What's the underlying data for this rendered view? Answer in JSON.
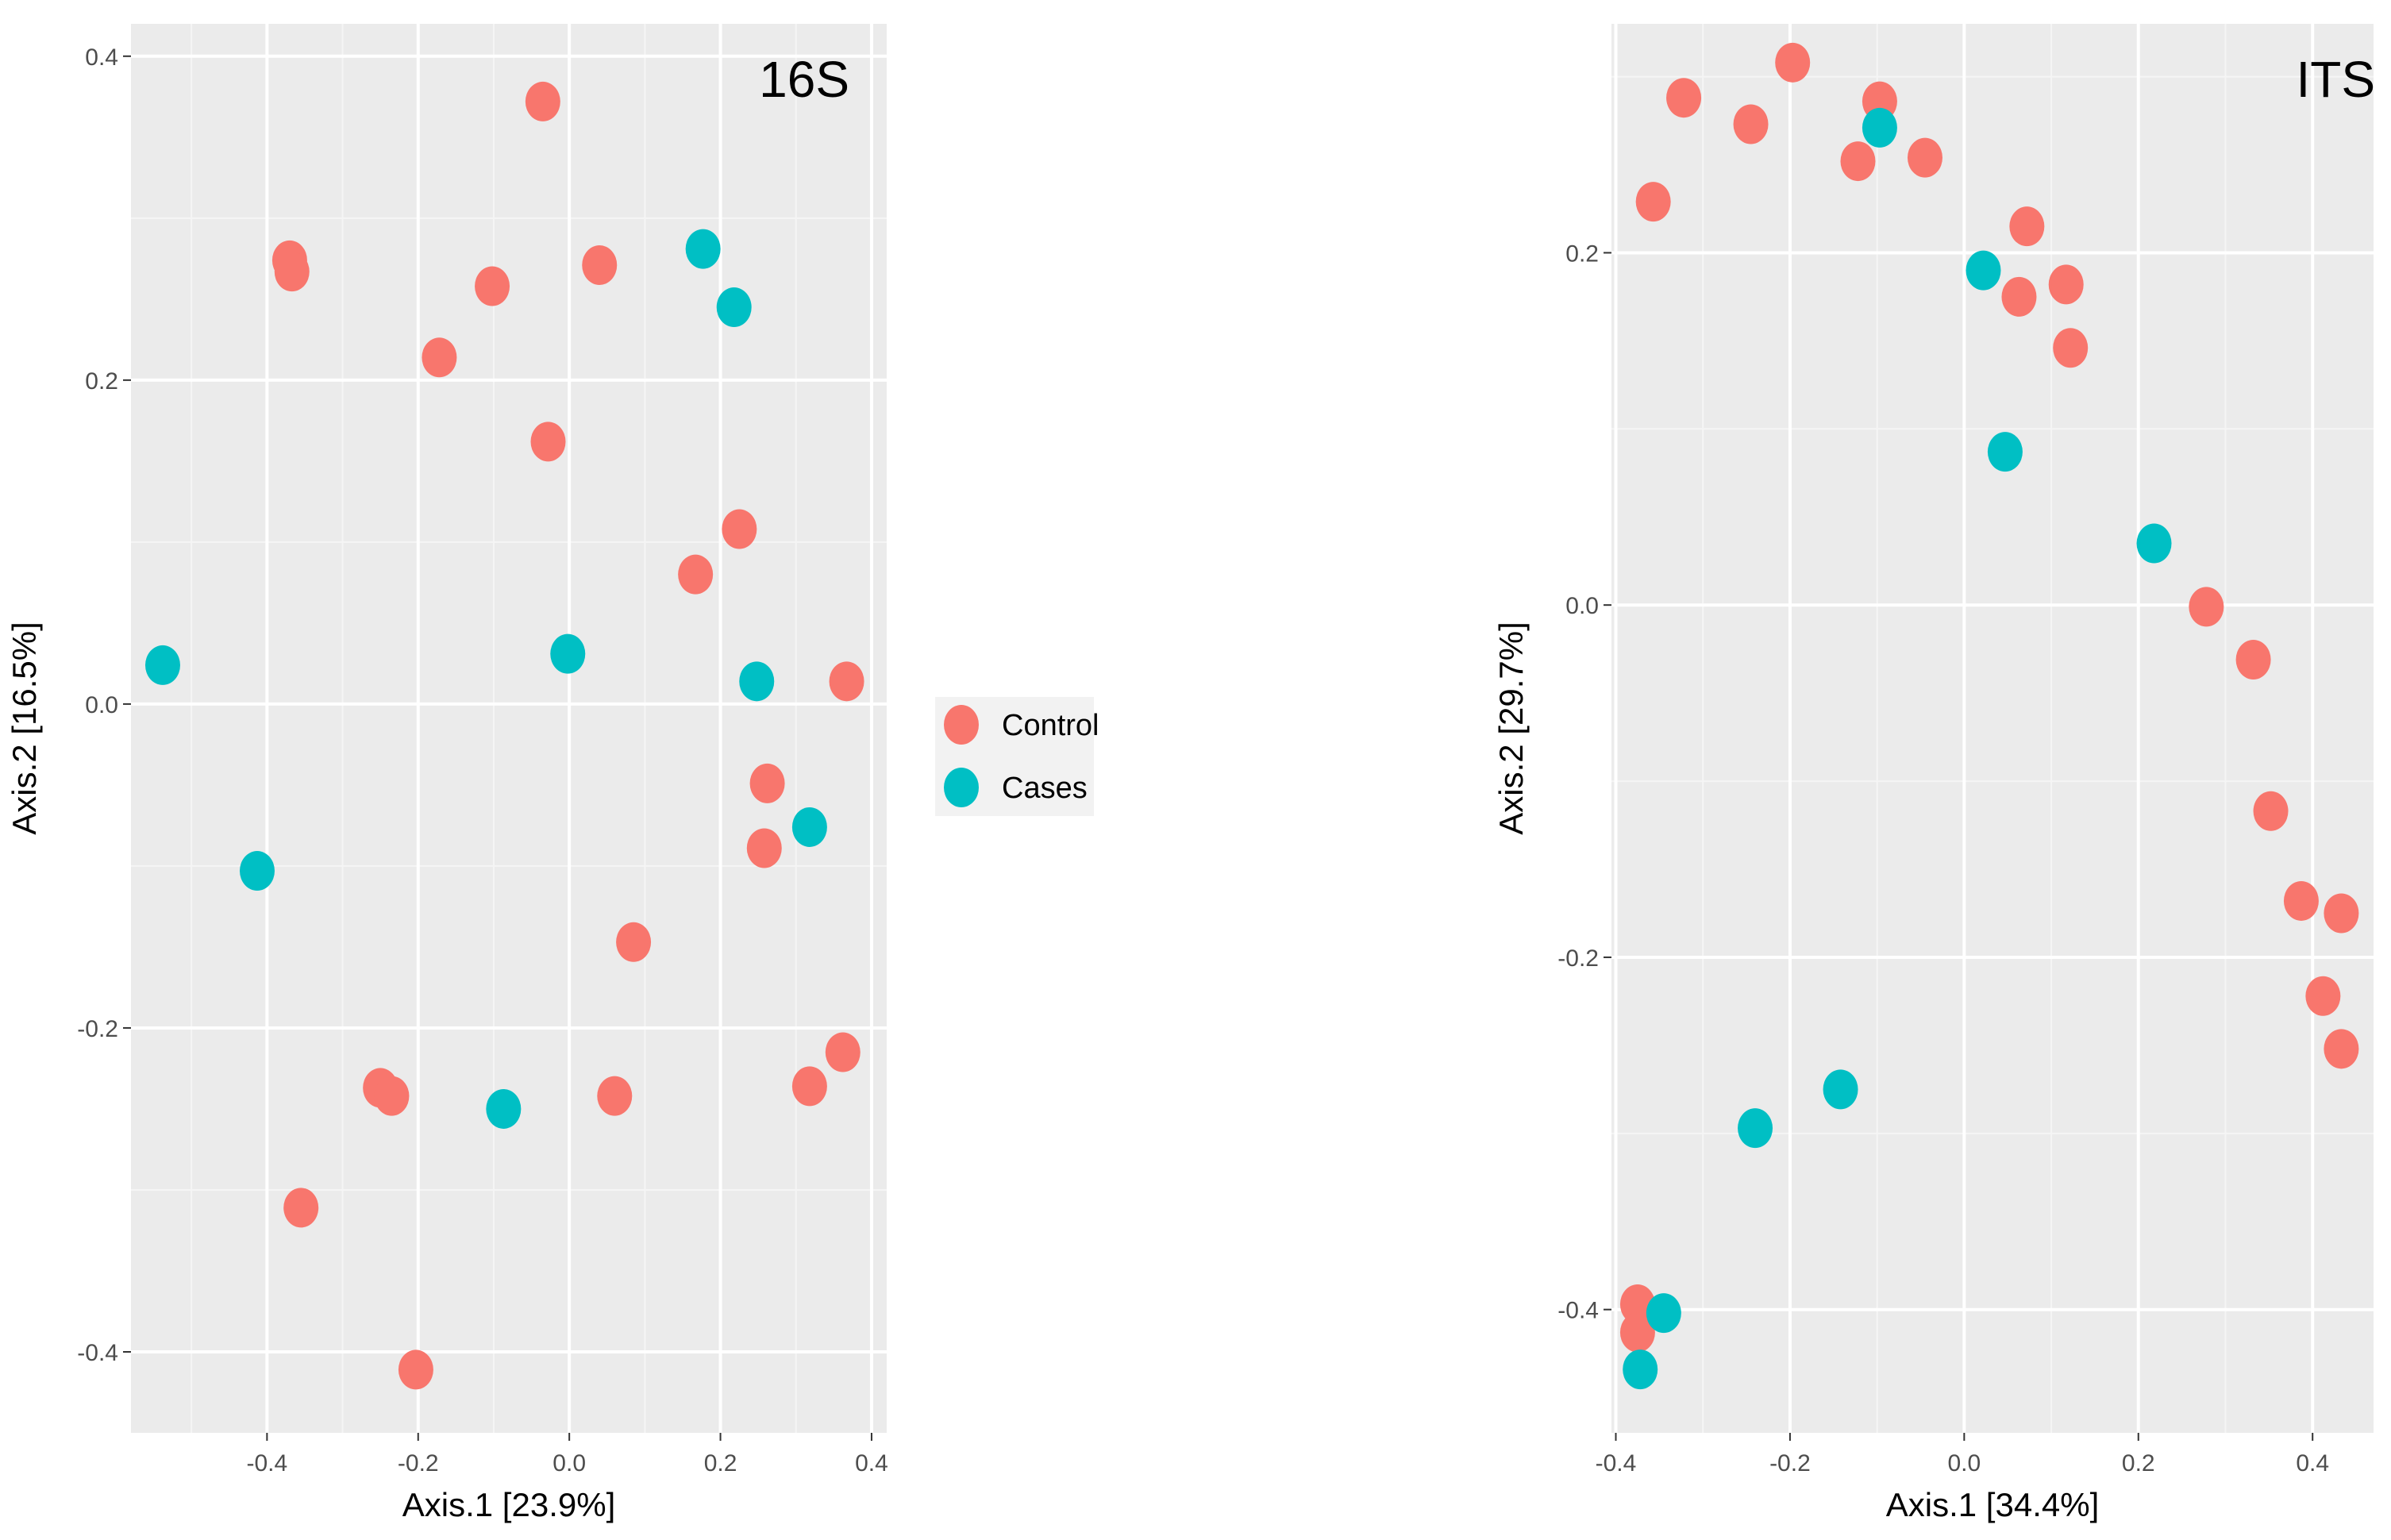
{
  "colors": {
    "Control": "#F8766D",
    "Cases": "#00BFC4",
    "panel_bg": "#EBEBEB",
    "grid_major": "#FFFFFF",
    "grid_minor": "#F5F5F5"
  },
  "legend": {
    "entries": [
      {
        "label": "Control",
        "group": "Control"
      },
      {
        "label": "Cases",
        "group": "Cases"
      }
    ]
  },
  "chart_data": [
    {
      "type": "scatter",
      "title": "16S",
      "xlabel": "Axis.1   [23.9%]",
      "ylabel": "Axis.2   [16.5%]",
      "xlim": [
        -0.58,
        0.42
      ],
      "ylim": [
        -0.45,
        0.42
      ],
      "xticks": [
        -0.4,
        -0.2,
        0.0,
        0.2,
        0.4
      ],
      "xtick_labels": [
        "-0.4",
        "-0.2",
        "0.0",
        "0.2",
        "0.4"
      ],
      "yticks": [
        -0.4,
        -0.2,
        0.0,
        0.2,
        0.4
      ],
      "ytick_labels": [
        "-0.4",
        "-0.2",
        "0.0",
        "0.2",
        "0.4"
      ],
      "grid": true,
      "series": [
        {
          "name": "Control",
          "points": [
            [
              -0.035,
              0.372
            ],
            [
              -0.37,
              0.274
            ],
            [
              -0.367,
              0.267
            ],
            [
              -0.102,
              0.258
            ],
            [
              0.04,
              0.271
            ],
            [
              -0.172,
              0.214
            ],
            [
              -0.028,
              0.162
            ],
            [
              0.225,
              0.108
            ],
            [
              0.167,
              0.08
            ],
            [
              0.367,
              0.014
            ],
            [
              0.262,
              -0.049
            ],
            [
              0.258,
              -0.089
            ],
            [
              0.085,
              -0.147
            ],
            [
              0.362,
              -0.215
            ],
            [
              0.318,
              -0.236
            ],
            [
              0.06,
              -0.242
            ],
            [
              -0.25,
              -0.237
            ],
            [
              -0.235,
              -0.242
            ],
            [
              -0.355,
              -0.311
            ],
            [
              -0.203,
              -0.411
            ]
          ]
        },
        {
          "name": "Cases",
          "points": [
            [
              0.177,
              0.281
            ],
            [
              0.218,
              0.245
            ],
            [
              -0.538,
              0.024
            ],
            [
              -0.002,
              0.031
            ],
            [
              0.248,
              0.014
            ],
            [
              0.318,
              -0.076
            ],
            [
              -0.413,
              -0.103
            ],
            [
              -0.087,
              -0.25
            ]
          ]
        }
      ]
    },
    {
      "type": "scatter",
      "title": "ITS",
      "xlabel": "Axis.1   [34.4%]",
      "ylabel": "Axis.2   [29.7%]",
      "xlim": [
        -0.405,
        0.47
      ],
      "ylim": [
        -0.47,
        0.33
      ],
      "xticks": [
        -0.4,
        -0.2,
        0.0,
        0.2,
        0.4
      ],
      "xtick_labels": [
        "-0.4",
        "-0.2",
        "0.0",
        "0.2",
        "0.4"
      ],
      "yticks": [
        -0.4,
        -0.2,
        0.0,
        0.2
      ],
      "ytick_labels": [
        "-0.4",
        "-0.2",
        "0.0",
        "0.2"
      ],
      "grid": true,
      "series": [
        {
          "name": "Control",
          "points": [
            [
              -0.357,
              0.229
            ],
            [
              -0.322,
              0.288
            ],
            [
              -0.245,
              0.273
            ],
            [
              -0.197,
              0.308
            ],
            [
              -0.122,
              0.252
            ],
            [
              -0.097,
              0.286
            ],
            [
              -0.045,
              0.254
            ],
            [
              0.072,
              0.215
            ],
            [
              0.063,
              0.175
            ],
            [
              0.117,
              0.182
            ],
            [
              0.122,
              0.146
            ],
            [
              0.278,
              -0.001
            ],
            [
              0.332,
              -0.031
            ],
            [
              0.352,
              -0.117
            ],
            [
              0.387,
              -0.168
            ],
            [
              0.433,
              -0.175
            ],
            [
              0.412,
              -0.222
            ],
            [
              0.433,
              -0.252
            ],
            [
              -0.375,
              -0.397
            ],
            [
              -0.375,
              -0.413
            ]
          ]
        },
        {
          "name": "Cases",
          "points": [
            [
              -0.097,
              0.271
            ],
            [
              0.022,
              0.19
            ],
            [
              0.047,
              0.087
            ],
            [
              0.218,
              0.035
            ],
            [
              -0.142,
              -0.275
            ],
            [
              -0.24,
              -0.297
            ],
            [
              -0.345,
              -0.402
            ],
            [
              -0.372,
              -0.434
            ]
          ]
        }
      ]
    }
  ]
}
